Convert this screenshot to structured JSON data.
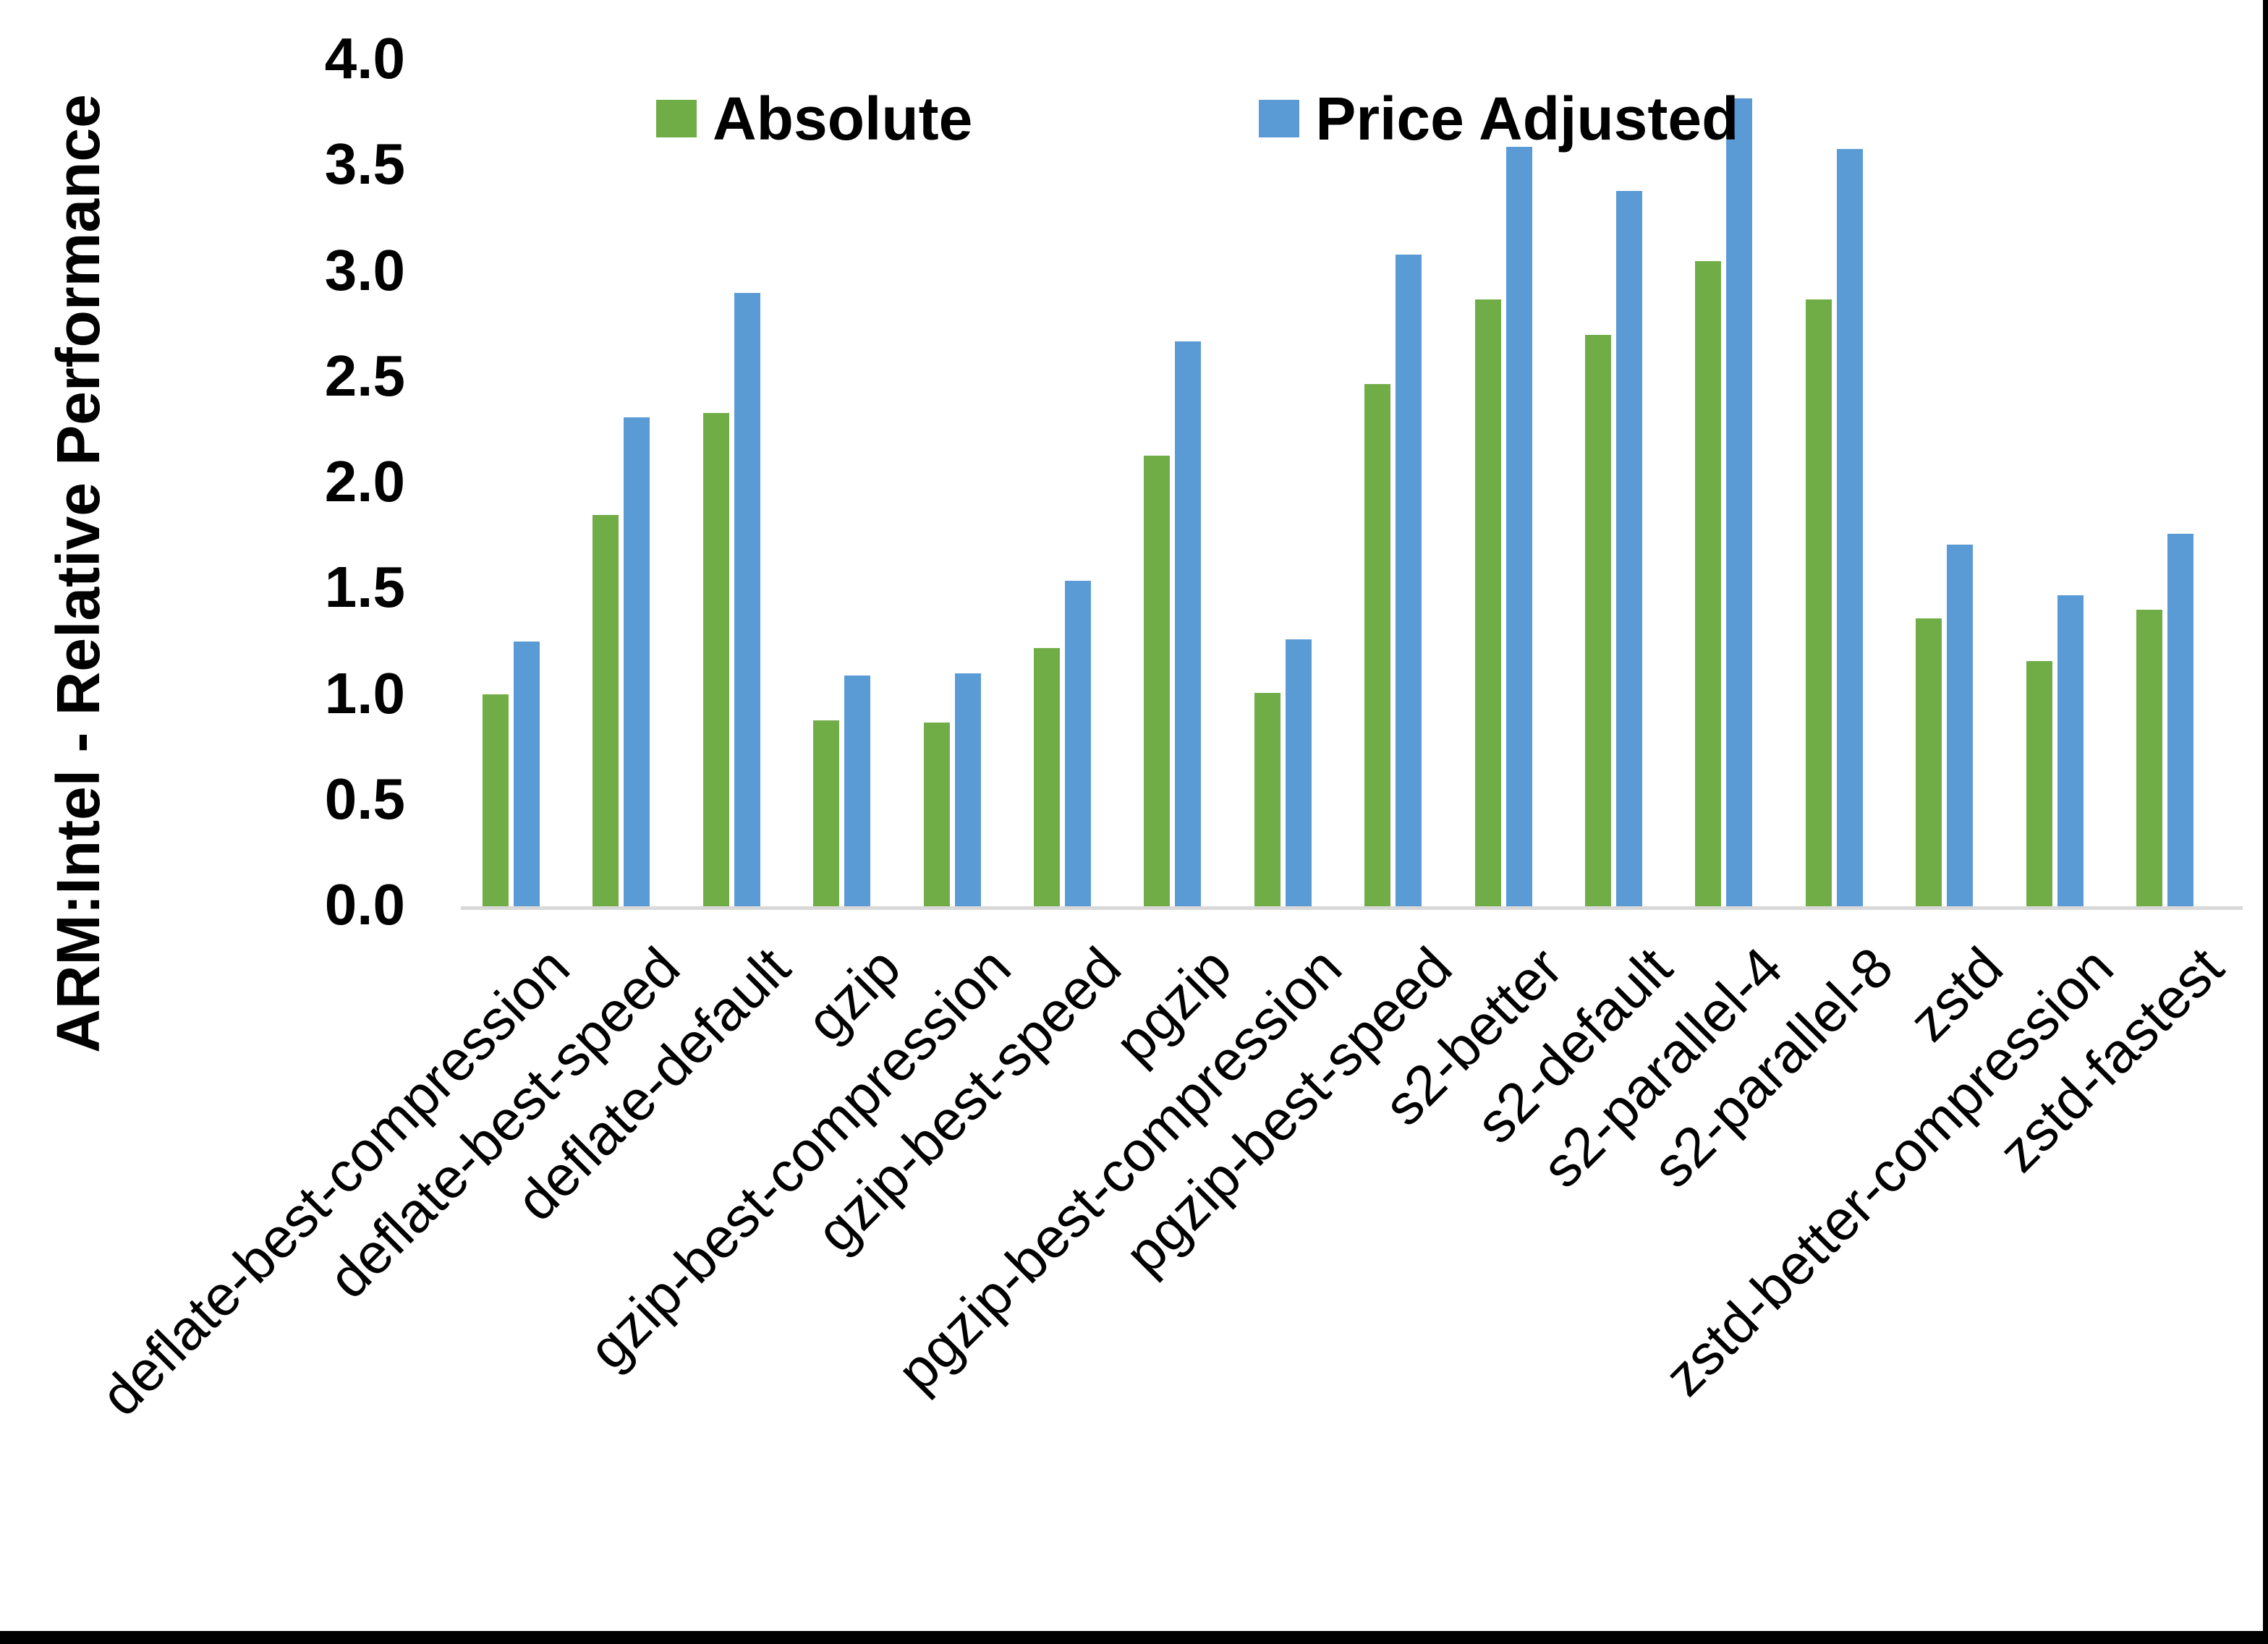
{
  "chart_data": {
    "type": "bar",
    "title": "",
    "xlabel": "",
    "ylabel": "ARM:Intel - Relative Performance",
    "ylim": [
      0.0,
      4.0
    ],
    "ytick_step": 0.5,
    "yticks": [
      "4.0",
      "3.5",
      "3.0",
      "2.5",
      "2.0",
      "1.5",
      "1.0",
      "0.5",
      "0.0"
    ],
    "grid": false,
    "legend_position": "top-center-inside",
    "categories": [
      "deflate-best-compression",
      "deflate-best-speed",
      "deflate-default",
      "gzip",
      "gzip-best-compression",
      "gzip-best-speed",
      "pgzip",
      "pgzip-best-compression",
      "pgzip-best-speed",
      "s2-better",
      "s2-default",
      "s2-parallel-4",
      "s2-parallel-8",
      "zstd",
      "zstd-better-compression",
      "zstd-fastest"
    ],
    "series": [
      {
        "name": "Absolute",
        "color": "#70AD47",
        "values": [
          1.0,
          1.85,
          2.33,
          0.88,
          0.87,
          1.22,
          2.13,
          1.01,
          2.47,
          2.87,
          2.7,
          3.05,
          2.87,
          1.36,
          1.16,
          1.4
        ]
      },
      {
        "name": "Price Adjusted",
        "color": "#5B9BD5",
        "values": [
          1.25,
          2.31,
          2.9,
          1.09,
          1.1,
          1.54,
          2.67,
          1.26,
          3.08,
          3.59,
          3.38,
          3.82,
          3.58,
          1.71,
          1.47,
          1.76
        ]
      }
    ]
  },
  "colors": {
    "absolute_series": "#70AD47",
    "price_adjusted_series": "#5B9BD5",
    "axis_line": "#D9D9D9",
    "text": "#000000",
    "frame": "#000000",
    "background": "#FFFFFF"
  }
}
